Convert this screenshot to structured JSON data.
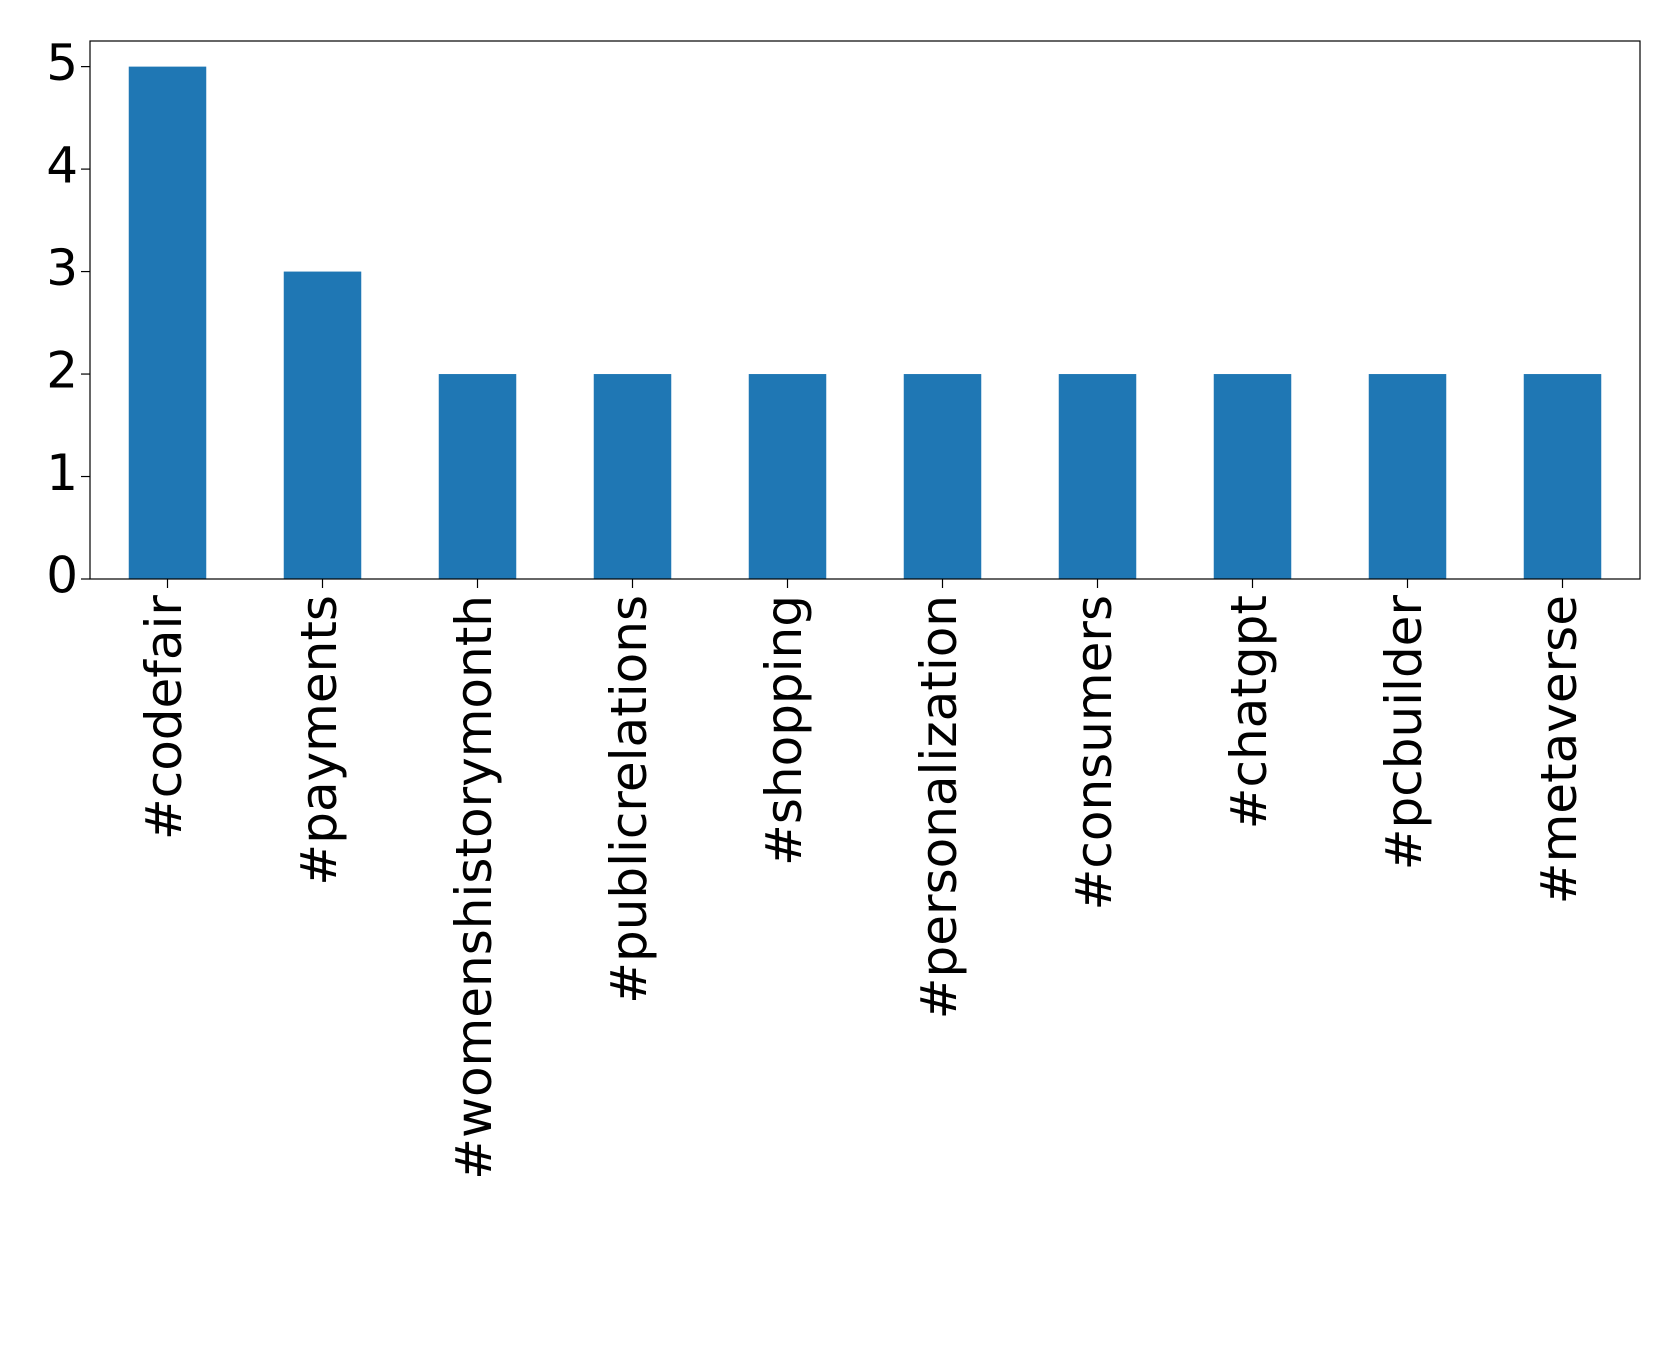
{
  "chart_data": {
    "type": "bar",
    "categories": [
      "#codefair",
      "#payments",
      "#womenshistorymonth",
      "#publicrelations",
      "#shopping",
      "#personalization",
      "#consumers",
      "#chatgpt",
      "#pcbuilder",
      "#metaverse"
    ],
    "values": [
      5,
      3,
      2,
      2,
      2,
      2,
      2,
      2,
      2,
      2
    ],
    "color": "#1f77b4",
    "ylim": [
      0,
      5.25
    ],
    "yticks": [
      0,
      1,
      2,
      3,
      4,
      5
    ],
    "grid": false
  }
}
